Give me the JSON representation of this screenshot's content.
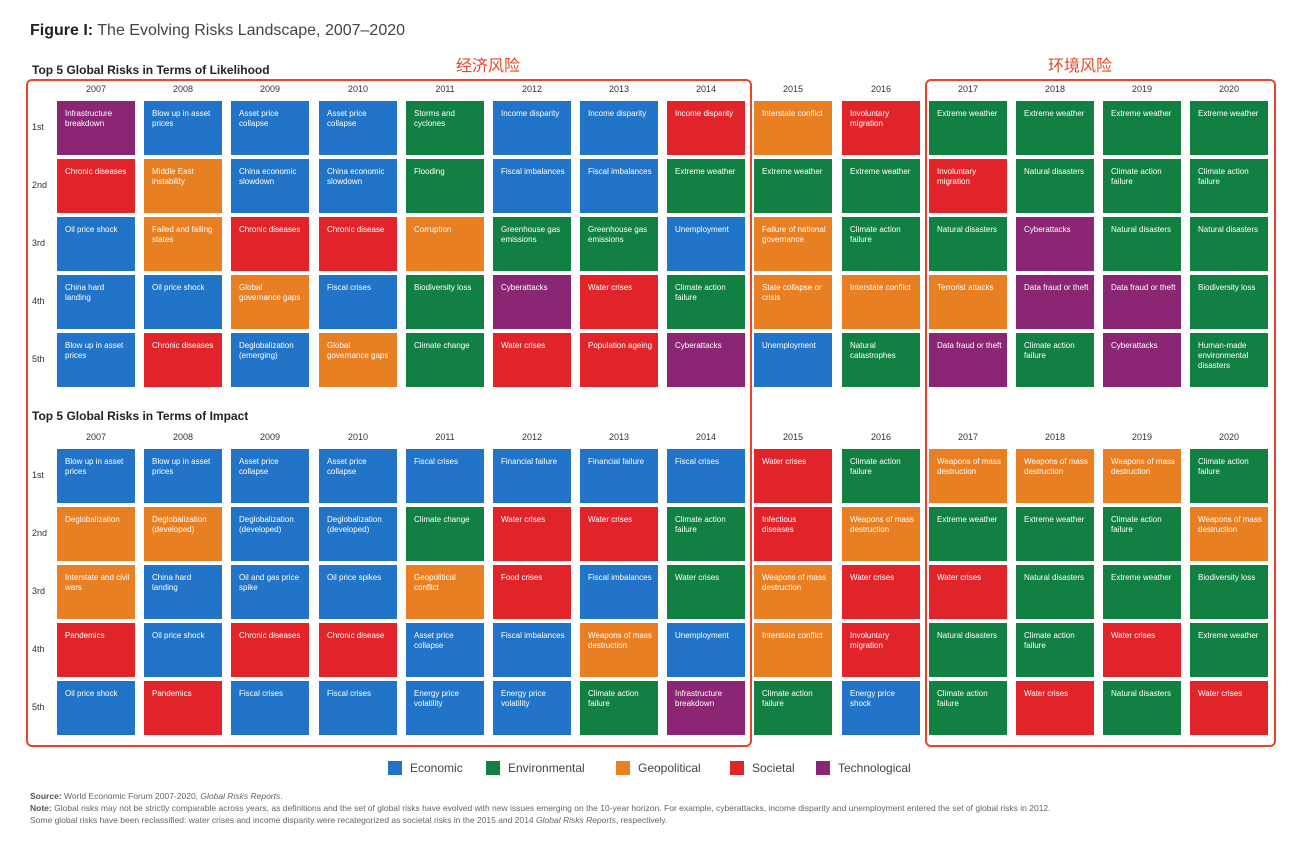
{
  "figure": {
    "title_bold": "Figure I:",
    "title_rest": " The Evolving Risks Landscape, 2007–2020"
  },
  "labels": {
    "economic_cn": "经济风险",
    "environmental_cn": "环境风险"
  },
  "colors": {
    "Economic": "#2174c7",
    "Environmental": "#128043",
    "Geopolitical": "#e97f23",
    "Societal": "#e0242a",
    "Technological": "#8a2673"
  },
  "chart_data": {
    "type": "table",
    "years": [
      "2007",
      "2008",
      "2009",
      "2010",
      "2011",
      "2012",
      "2013",
      "2014",
      "2015",
      "2016",
      "2017",
      "2018",
      "2019",
      "2020"
    ],
    "ranks": [
      "1st",
      "2nd",
      "3rd",
      "4th",
      "5th"
    ],
    "legend": [
      "Economic",
      "Environmental",
      "Geopolitical",
      "Societal",
      "Technological"
    ],
    "likelihood": {
      "title": "Top 5 Global Risks in Terms of Likelihood",
      "columns": [
        [
          [
            "Infrastructure breakdown",
            "Technological"
          ],
          [
            "Chronic diseases",
            "Societal"
          ],
          [
            "Oil price shock",
            "Economic"
          ],
          [
            "China hard landing",
            "Economic"
          ],
          [
            "Blow up in asset prices",
            "Economic"
          ]
        ],
        [
          [
            "Blow up in asset prices",
            "Economic"
          ],
          [
            "Middle East instability",
            "Geopolitical"
          ],
          [
            "Failed and failing states",
            "Geopolitical"
          ],
          [
            "Oil price shock",
            "Economic"
          ],
          [
            "Chronic diseases",
            "Societal"
          ]
        ],
        [
          [
            "Asset price collapse",
            "Economic"
          ],
          [
            "China economic slowdown",
            "Economic"
          ],
          [
            "Chronic diseases",
            "Societal"
          ],
          [
            "Global governance gaps",
            "Geopolitical"
          ],
          [
            "Deglobalization (emerging)",
            "Economic"
          ]
        ],
        [
          [
            "Asset price collapse",
            "Economic"
          ],
          [
            "China economic slowdown",
            "Economic"
          ],
          [
            "Chronic disease",
            "Societal"
          ],
          [
            "Fiscal crises",
            "Economic"
          ],
          [
            "Global governance gaps",
            "Geopolitical"
          ]
        ],
        [
          [
            "Storms and cyclones",
            "Environmental"
          ],
          [
            "Flooding",
            "Environmental"
          ],
          [
            "Corruption",
            "Geopolitical"
          ],
          [
            "Biodiversity loss",
            "Environmental"
          ],
          [
            "Climate change",
            "Environmental"
          ]
        ],
        [
          [
            "Income disparity",
            "Economic"
          ],
          [
            "Fiscal imbalances",
            "Economic"
          ],
          [
            "Greenhouse gas emissions",
            "Environmental"
          ],
          [
            "Cyberattacks",
            "Technological"
          ],
          [
            "Water crises",
            "Societal"
          ]
        ],
        [
          [
            "Income disparity",
            "Economic"
          ],
          [
            "Fiscal imbalances",
            "Economic"
          ],
          [
            "Greenhouse gas emissions",
            "Environmental"
          ],
          [
            "Water crises",
            "Societal"
          ],
          [
            "Population ageing",
            "Societal"
          ]
        ],
        [
          [
            "Income disparity",
            "Societal"
          ],
          [
            "Extreme weather",
            "Environmental"
          ],
          [
            "Unemployment",
            "Economic"
          ],
          [
            "Climate action failure",
            "Environmental"
          ],
          [
            "Cyberattacks",
            "Technological"
          ]
        ],
        [
          [
            "Interstate conflict",
            "Geopolitical"
          ],
          [
            "Extreme weather",
            "Environmental"
          ],
          [
            "Failure of national governance",
            "Geopolitical"
          ],
          [
            "State collapse or crisis",
            "Geopolitical"
          ],
          [
            "Unemployment",
            "Economic"
          ]
        ],
        [
          [
            "Involuntary migration",
            "Societal"
          ],
          [
            "Extreme weather",
            "Environmental"
          ],
          [
            "Climate action failure",
            "Environmental"
          ],
          [
            "Interstate conflict",
            "Geopolitical"
          ],
          [
            "Natural catastrophes",
            "Environmental"
          ]
        ],
        [
          [
            "Extreme weather",
            "Environmental"
          ],
          [
            "Involuntary migration",
            "Societal"
          ],
          [
            "Natural disasters",
            "Environmental"
          ],
          [
            "Terrorist attacks",
            "Geopolitical"
          ],
          [
            "Data fraud or theft",
            "Technological"
          ]
        ],
        [
          [
            "Extreme weather",
            "Environmental"
          ],
          [
            "Natural disasters",
            "Environmental"
          ],
          [
            "Cyberattacks",
            "Technological"
          ],
          [
            "Data fraud or theft",
            "Technological"
          ],
          [
            "Climate action failure",
            "Environmental"
          ]
        ],
        [
          [
            "Extreme weather",
            "Environmental"
          ],
          [
            "Climate action failure",
            "Environmental"
          ],
          [
            "Natural disasters",
            "Environmental"
          ],
          [
            "Data fraud or theft",
            "Technological"
          ],
          [
            "Cyberattacks",
            "Technological"
          ]
        ],
        [
          [
            "Extreme weather",
            "Environmental"
          ],
          [
            "Climate action failure",
            "Environmental"
          ],
          [
            "Natural disasters",
            "Environmental"
          ],
          [
            "Biodiversity loss",
            "Environmental"
          ],
          [
            "Human-made environmental disasters",
            "Environmental"
          ]
        ]
      ]
    },
    "impact": {
      "title": "Top 5 Global Risks in Terms of Impact",
      "columns": [
        [
          [
            "Blow up in asset prices",
            "Economic"
          ],
          [
            "Deglobalization",
            "Geopolitical"
          ],
          [
            "Interstate and civil wars",
            "Geopolitical"
          ],
          [
            "Pandemics",
            "Societal"
          ],
          [
            "Oil price shock",
            "Economic"
          ]
        ],
        [
          [
            "Blow up in asset prices",
            "Economic"
          ],
          [
            "Deglobalization (developed)",
            "Geopolitical"
          ],
          [
            "China hard landing",
            "Economic"
          ],
          [
            "Oil price shock",
            "Economic"
          ],
          [
            "Pandemics",
            "Societal"
          ]
        ],
        [
          [
            "Asset price collapse",
            "Economic"
          ],
          [
            "Deglobalization (developed)",
            "Economic"
          ],
          [
            "Oil and gas price spike",
            "Economic"
          ],
          [
            "Chronic diseases",
            "Societal"
          ],
          [
            "Fiscal crises",
            "Economic"
          ]
        ],
        [
          [
            "Asset price collapse",
            "Economic"
          ],
          [
            "Deglobalization (developed)",
            "Economic"
          ],
          [
            "Oil price spikes",
            "Economic"
          ],
          [
            "Chronic disease",
            "Societal"
          ],
          [
            "Fiscal crises",
            "Economic"
          ]
        ],
        [
          [
            "Fiscal crises",
            "Economic"
          ],
          [
            "Climate change",
            "Environmental"
          ],
          [
            "Geopolitical conflict",
            "Geopolitical"
          ],
          [
            "Asset price collapse",
            "Economic"
          ],
          [
            "Energy price volatility",
            "Economic"
          ]
        ],
        [
          [
            "Financial failure",
            "Economic"
          ],
          [
            "Water crises",
            "Societal"
          ],
          [
            "Food crises",
            "Societal"
          ],
          [
            "Fiscal imbalances",
            "Economic"
          ],
          [
            "Energy price volatility",
            "Economic"
          ]
        ],
        [
          [
            "Financial failure",
            "Economic"
          ],
          [
            "Water crises",
            "Societal"
          ],
          [
            "Fiscal imbalances",
            "Economic"
          ],
          [
            "Weapons of mass destruction",
            "Geopolitical"
          ],
          [
            "Climate action failure",
            "Environmental"
          ]
        ],
        [
          [
            "Fiscal crises",
            "Economic"
          ],
          [
            "Climate action failure",
            "Environmental"
          ],
          [
            "Water crises",
            "Environmental"
          ],
          [
            "Unemployment",
            "Economic"
          ],
          [
            "Infrastructure breakdown",
            "Technological"
          ]
        ],
        [
          [
            "Water crises",
            "Societal"
          ],
          [
            "Infectious diseases",
            "Societal"
          ],
          [
            "Weapons of mass destruction",
            "Geopolitical"
          ],
          [
            "Interstate conflict",
            "Geopolitical"
          ],
          [
            "Climate action failure",
            "Environmental"
          ]
        ],
        [
          [
            "Climate action failure",
            "Environmental"
          ],
          [
            "Weapons of mass destruction",
            "Geopolitical"
          ],
          [
            "Water crises",
            "Societal"
          ],
          [
            "Involuntary migration",
            "Societal"
          ],
          [
            "Energy price shock",
            "Economic"
          ]
        ],
        [
          [
            "Weapons of mass destruction",
            "Geopolitical"
          ],
          [
            "Extreme weather",
            "Environmental"
          ],
          [
            "Water crises",
            "Societal"
          ],
          [
            "Natural disasters",
            "Environmental"
          ],
          [
            "Climate action failure",
            "Environmental"
          ]
        ],
        [
          [
            "Weapons of mass destruction",
            "Geopolitical"
          ],
          [
            "Extreme weather",
            "Environmental"
          ],
          [
            "Natural disasters",
            "Environmental"
          ],
          [
            "Climate action failure",
            "Environmental"
          ],
          [
            "Water crises",
            "Societal"
          ]
        ],
        [
          [
            "Weapons of mass destruction",
            "Geopolitical"
          ],
          [
            "Climate action failure",
            "Environmental"
          ],
          [
            "Extreme weather",
            "Environmental"
          ],
          [
            "Water crises",
            "Societal"
          ],
          [
            "Natural disasters",
            "Environmental"
          ]
        ],
        [
          [
            "Climate action failure",
            "Environmental"
          ],
          [
            "Weapons of mass destruction",
            "Geopolitical"
          ],
          [
            "Biodiversity loss",
            "Environmental"
          ],
          [
            "Extreme weather",
            "Environmental"
          ],
          [
            "Water crises",
            "Societal"
          ]
        ]
      ]
    }
  },
  "footnotes": {
    "source_label": "Source:",
    "source_text": " World Economic Forum 2007-2020, ",
    "source_italic": "Global Risks Reports",
    "source_end": ".",
    "note_label": "Note:",
    "note_text": " Global risks may not be strictly comparable across years, as definitions and the set of global risks have evolved with new issues emerging on the 10-year horizon. For example, cyberattacks, income disparity and unemployment entered the set of global risks in 2012.",
    "note2_text": "Some global risks have been reclassified: water crises and income disparity were recategorized as societal risks in the 2015 and 2014 ",
    "note2_italic": "Global Risks Reports",
    "note2_end": ", respectively."
  }
}
